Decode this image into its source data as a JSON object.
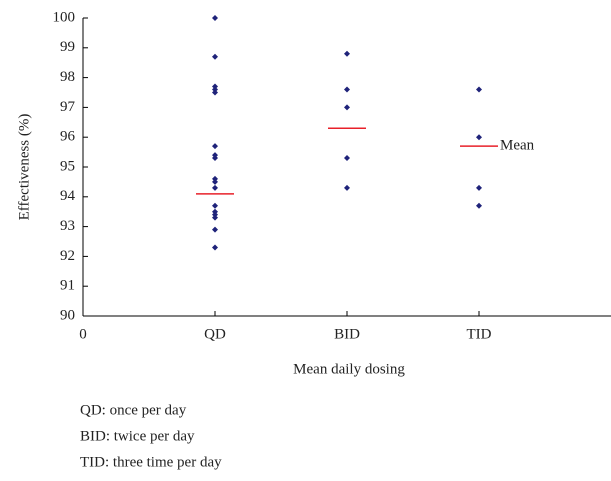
{
  "chart_data": {
    "type": "scatter",
    "y_label": "Effectiveness (%)",
    "x_label": "Mean daily dosing",
    "xlim": [
      0,
      4
    ],
    "xticks": [
      0,
      {
        "value": 1,
        "label": "QD"
      },
      {
        "value": 2,
        "label": "BID"
      },
      {
        "value": 3,
        "label": "TID"
      }
    ],
    "ylim": [
      90,
      100
    ],
    "yticks": [
      90,
      91,
      92,
      93,
      94,
      95,
      96,
      97,
      98,
      99,
      100
    ],
    "series": [
      {
        "color": "#1f237a",
        "x": [
          1,
          1,
          1,
          1,
          1,
          1,
          1,
          1,
          1,
          1,
          1,
          1,
          1,
          1,
          1,
          1,
          1,
          2,
          2,
          2,
          2,
          2,
          3,
          3,
          3,
          3
        ],
        "values": [
          100,
          98.7,
          97.7,
          97.6,
          97.5,
          95.7,
          95.4,
          95.3,
          94.6,
          94.5,
          94.3,
          93.7,
          93.5,
          93.4,
          93.3,
          92.9,
          92.3,
          98.8,
          97.6,
          97.0,
          95.3,
          94.3,
          97.6,
          96.0,
          94.3,
          93.7
        ]
      },
      {
        "name": "Mean",
        "color": "#e8202a",
        "x": [
          1,
          2,
          3
        ],
        "values": [
          94.1,
          96.3,
          95.7
        ]
      }
    ],
    "notes": [
      "QD: once per day",
      "BID: twice per day",
      "TID: three time per day"
    ]
  }
}
